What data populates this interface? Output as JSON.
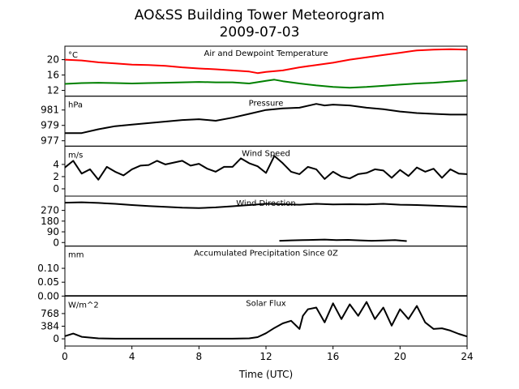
{
  "figure": {
    "title": "AO&SS Building Tower Meteorogram",
    "subtitle": "2009-07-03",
    "xlabel": "Time (UTC)"
  },
  "chart_data": {
    "type": "line",
    "x_ticks": [
      0,
      4,
      8,
      12,
      16,
      20,
      24
    ],
    "xlim": [
      0,
      24
    ],
    "panels": [
      {
        "id": "temperature",
        "title": "Air and Dewpoint Temperature",
        "unit": "°C",
        "ylim": [
          10.5,
          23.5
        ],
        "yticks": [
          12,
          16,
          20
        ],
        "series": [
          {
            "color": "#ff0000",
            "x": [
              0,
              1,
              2,
              3,
              4,
              5,
              6,
              7,
              8,
              9,
              10,
              11,
              11.5,
              12,
              13,
              14,
              15,
              16,
              17,
              18,
              19,
              20,
              21,
              22,
              23,
              24
            ],
            "values": [
              20.0,
              19.8,
              19.3,
              19.0,
              18.7,
              18.6,
              18.4,
              18.0,
              17.7,
              17.5,
              17.2,
              16.9,
              16.5,
              16.8,
              17.2,
              18.0,
              18.6,
              19.2,
              20.0,
              20.6,
              21.2,
              21.8,
              22.4,
              22.6,
              22.7,
              22.6
            ]
          },
          {
            "color": "#008000",
            "x": [
              0,
              1,
              2,
              3,
              4,
              5,
              6,
              7,
              8,
              9,
              10,
              11,
              12,
              12.5,
              13,
              14,
              15,
              16,
              17,
              18,
              19,
              20,
              21,
              22,
              23,
              24
            ],
            "values": [
              13.7,
              13.9,
              14.0,
              13.9,
              13.8,
              13.9,
              14.0,
              14.1,
              14.2,
              14.1,
              14.1,
              13.8,
              14.5,
              14.8,
              14.4,
              13.8,
              13.3,
              12.9,
              12.7,
              12.9,
              13.2,
              13.5,
              13.8,
              14.0,
              14.3,
              14.6
            ]
          }
        ]
      },
      {
        "id": "pressure",
        "title": "Pressure",
        "unit": "hPa",
        "ylim": [
          976.3,
          982.8
        ],
        "yticks": [
          977,
          979,
          981
        ],
        "series": [
          {
            "color": "#000000",
            "x": [
              0,
              1,
              2,
              3,
              4,
              5,
              6,
              7,
              8,
              9,
              10,
              11,
              12,
              13,
              14,
              15,
              15.5,
              16,
              17,
              18,
              19,
              20,
              21,
              22,
              23,
              24
            ],
            "values": [
              978.0,
              978.0,
              978.5,
              978.9,
              979.1,
              979.3,
              979.5,
              979.7,
              979.8,
              979.6,
              980.0,
              980.5,
              981.0,
              981.2,
              981.3,
              981.8,
              981.6,
              981.7,
              981.6,
              981.3,
              981.1,
              980.8,
              980.6,
              980.5,
              980.4,
              980.4
            ]
          }
        ]
      },
      {
        "id": "wind_speed",
        "title": "Wind Speed",
        "unit": "m/s",
        "ylim": [
          -1.2,
          7.0
        ],
        "yticks": [
          0,
          2,
          4
        ],
        "series": [
          {
            "color": "#000000",
            "x": [
              0,
              0.5,
              1,
              1.5,
              2,
              2.5,
              3,
              3.5,
              4,
              4.5,
              5,
              5.5,
              6,
              6.5,
              7,
              7.5,
              8,
              8.5,
              9,
              9.5,
              10,
              10.5,
              11,
              11.5,
              12,
              12.5,
              13,
              13.5,
              14,
              14.5,
              15,
              15.5,
              16,
              16.5,
              17,
              17.5,
              18,
              18.5,
              19,
              19.5,
              20,
              20.5,
              21,
              21.5,
              22,
              22.5,
              23,
              23.5,
              24
            ],
            "values": [
              3.5,
              4.6,
              2.5,
              3.2,
              1.5,
              3.6,
              2.8,
              2.2,
              3.2,
              3.8,
              3.9,
              4.6,
              4.0,
              4.3,
              4.6,
              3.8,
              4.1,
              3.3,
              2.8,
              3.6,
              3.6,
              5.0,
              4.2,
              3.7,
              2.6,
              5.4,
              4.2,
              2.8,
              2.4,
              3.6,
              3.2,
              1.6,
              2.8,
              2.0,
              1.7,
              2.4,
              2.6,
              3.2,
              3.0,
              1.8,
              3.1,
              2.1,
              3.5,
              2.8,
              3.3,
              1.8,
              3.2,
              2.5,
              2.4
            ]
          }
        ]
      },
      {
        "id": "wind_direction",
        "title": "Wind Direction",
        "unit": "",
        "ylim": [
          -30,
          390
        ],
        "yticks": [
          0,
          90,
          180,
          270
        ],
        "series": [
          {
            "color": "#000000",
            "x": [
              0,
              1,
              2,
              3,
              4,
              5,
              6,
              7,
              8,
              9,
              10,
              11,
              12,
              13,
              14,
              15,
              16,
              17,
              18,
              19,
              20,
              21,
              22,
              23,
              24
            ],
            "values": [
              335,
              338,
              333,
              325,
              315,
              307,
              300,
              293,
              290,
              295,
              305,
              315,
              325,
              322,
              318,
              325,
              320,
              322,
              320,
              325,
              318,
              315,
              310,
              305,
              300
            ]
          },
          {
            "color": "#000000",
            "x": [
              12.8,
              13.5,
              14.2,
              14.8,
              15.5,
              16.2,
              16.9,
              17.6,
              18.3,
              19.0,
              19.7,
              20.4
            ],
            "values": [
              15,
              18,
              20,
              22,
              25,
              20,
              22,
              18,
              15,
              17,
              20,
              12
            ]
          }
        ]
      },
      {
        "id": "precipitation",
        "title": "Accumulated Precipitation Since 0Z",
        "unit": "mm",
        "ylim": [
          0,
          0.18
        ],
        "yticks": [
          0.0,
          0.05,
          0.1
        ],
        "ytick_labels": [
          "0.00",
          "0.05",
          "0.10"
        ],
        "series": [
          {
            "color": "#000000",
            "x": [
              0,
              24
            ],
            "values": [
              0.0,
              0.0
            ]
          }
        ]
      },
      {
        "id": "solar",
        "title": "Solar Flux",
        "unit": "W/m^2",
        "ylim": [
          -220,
          1300
        ],
        "yticks": [
          0,
          384,
          768
        ],
        "series": [
          {
            "color": "#000000",
            "x": [
              0,
              0.5,
              1,
              2,
              3,
              4,
              5,
              6,
              7,
              8,
              9,
              10,
              11,
              11.5,
              12,
              12.5,
              13,
              13.5,
              14,
              14.2,
              14.5,
              15,
              15.5,
              16,
              16.5,
              17,
              17.5,
              18,
              18.5,
              19,
              19.5,
              20,
              20.5,
              21,
              21.5,
              22,
              22.5,
              23,
              23.5,
              24
            ],
            "values": [
              80,
              160,
              60,
              15,
              5,
              5,
              5,
              5,
              5,
              5,
              5,
              5,
              15,
              50,
              170,
              330,
              470,
              550,
              300,
              700,
              900,
              950,
              500,
              1080,
              600,
              1050,
              700,
              1120,
              600,
              950,
              400,
              900,
              600,
              1000,
              500,
              300,
              320,
              250,
              150,
              70
            ]
          }
        ]
      }
    ]
  }
}
